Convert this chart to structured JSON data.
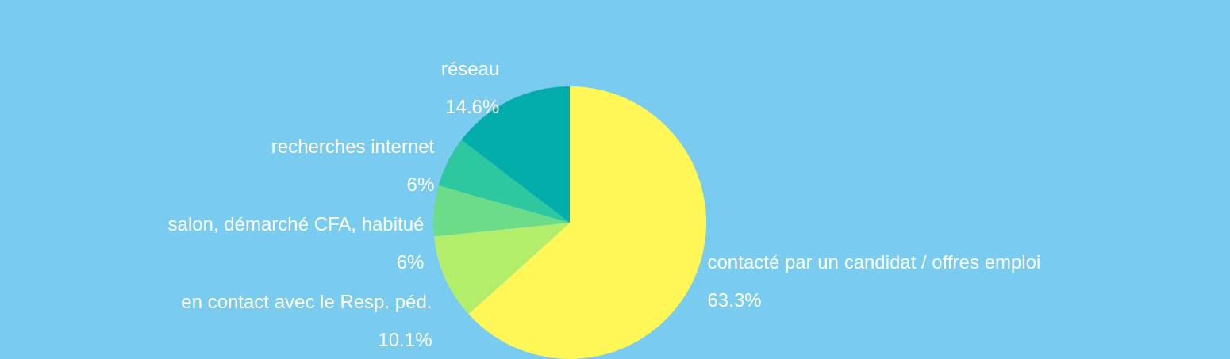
{
  "chart_data": {
    "type": "pie",
    "categories": [
      "contacté par un candidat / offres emploi",
      "en contact avec le Resp. péd.",
      "salon, démarché CFA, habitué",
      "recherches internet",
      "réseau"
    ],
    "values": [
      63.3,
      10.1,
      6,
      6,
      14.6
    ],
    "colors": [
      "#fff757",
      "#b3ee6a",
      "#6ddc88",
      "#2ec8a0",
      "#03aeaa"
    ],
    "value_labels": [
      "63.3%",
      "10.1%",
      "6%",
      "6%",
      "14.6%"
    ],
    "legend": false
  }
}
